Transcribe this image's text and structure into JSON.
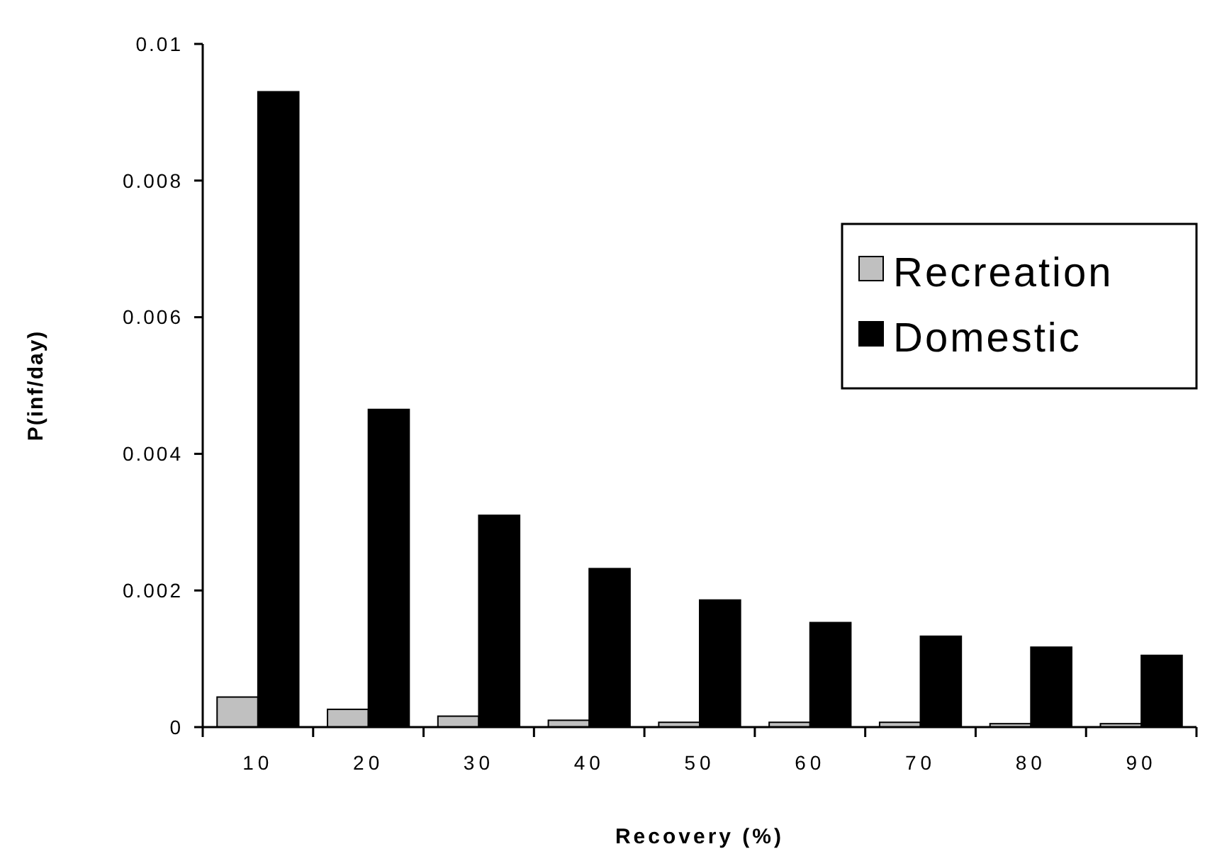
{
  "chart_data": {
    "type": "bar",
    "xlabel": "Recovery (%)",
    "ylabel": "P(inf/day)",
    "categories": [
      "10",
      "20",
      "30",
      "40",
      "50",
      "60",
      "70",
      "80",
      "90"
    ],
    "series": [
      {
        "name": "Recreation",
        "color": "#c0c0c0",
        "values": [
          0.00044,
          0.00026,
          0.00016,
          0.0001,
          7e-05,
          7e-05,
          7e-05,
          5e-05,
          5e-05
        ]
      },
      {
        "name": "Domestic",
        "color": "#000000",
        "values": [
          0.0093,
          0.00465,
          0.0031,
          0.00232,
          0.00186,
          0.00153,
          0.00133,
          0.00117,
          0.00105
        ]
      }
    ],
    "ylim": [
      0,
      0.01
    ],
    "yticks": [
      0,
      0.002,
      0.004,
      0.006,
      0.008,
      0.01
    ],
    "grid": false,
    "legend": "right"
  }
}
